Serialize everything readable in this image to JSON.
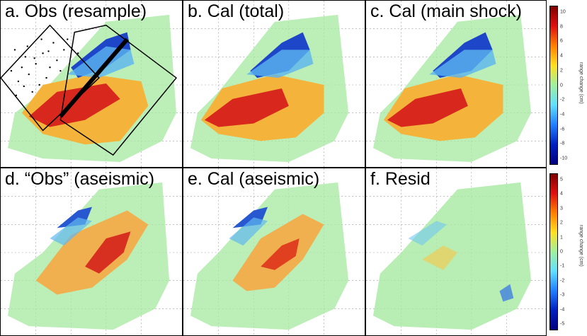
{
  "panels": [
    {
      "id": "a",
      "label": "a. Obs (resample)"
    },
    {
      "id": "b",
      "label": "b. Cal (total)"
    },
    {
      "id": "c",
      "label": "c. Cal (main shock)"
    },
    {
      "id": "d",
      "label": "d. “Obs” (aseismic)"
    },
    {
      "id": "e",
      "label": "e. Cal (aseismic)"
    },
    {
      "id": "f",
      "label": "f. Resid"
    }
  ],
  "colorbar_top": {
    "label": "range change (cm)",
    "ticks": [
      "10",
      "8",
      "6",
      "4",
      "2",
      "0",
      "-2",
      "-4",
      "-6",
      "-8",
      "-10"
    ]
  },
  "colorbar_bottom": {
    "label": "range change (cm)",
    "ticks": [
      "5",
      "4",
      "3",
      "2",
      "1",
      "0",
      "-1",
      "-2",
      "-3",
      "-4",
      "-5"
    ]
  }
}
